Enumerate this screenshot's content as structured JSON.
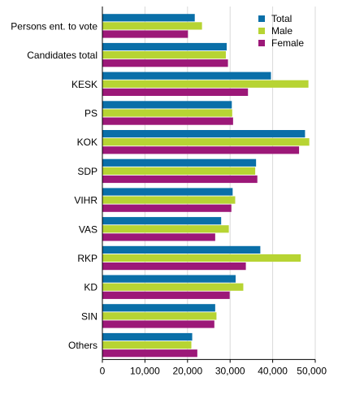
{
  "chart_data": {
    "type": "bar",
    "orientation": "horizontal",
    "categories": [
      "Persons ent. to vote",
      "Candidates total",
      "KESK",
      "PS",
      "KOK",
      "SDP",
      "VIHR",
      "VAS",
      "RKP",
      "KD",
      "SIN",
      "Others"
    ],
    "series": [
      {
        "name": "Total",
        "color": "#0a6fa8",
        "values": [
          21700,
          29200,
          39600,
          30400,
          47600,
          36100,
          30600,
          27900,
          37100,
          31300,
          26500,
          21100
        ]
      },
      {
        "name": "Male",
        "color": "#b7d433",
        "values": [
          23400,
          29000,
          48400,
          30500,
          48600,
          35900,
          31200,
          29700,
          46600,
          33100,
          26800,
          20900
        ]
      },
      {
        "name": "Female",
        "color": "#9c1878",
        "values": [
          20100,
          29500,
          34200,
          30700,
          46200,
          36400,
          30300,
          26500,
          33700,
          29900,
          26300,
          22300
        ]
      }
    ],
    "xlim": [
      0,
      50000
    ],
    "xticks": [
      "0",
      "10,000",
      "20,000",
      "30,000",
      "40,000",
      "50,000"
    ],
    "xtick_values": [
      0,
      10000,
      20000,
      30000,
      40000,
      50000
    ],
    "title": "",
    "xlabel": "",
    "ylabel": "",
    "grid": "vertical",
    "legend_position": "top-right"
  }
}
